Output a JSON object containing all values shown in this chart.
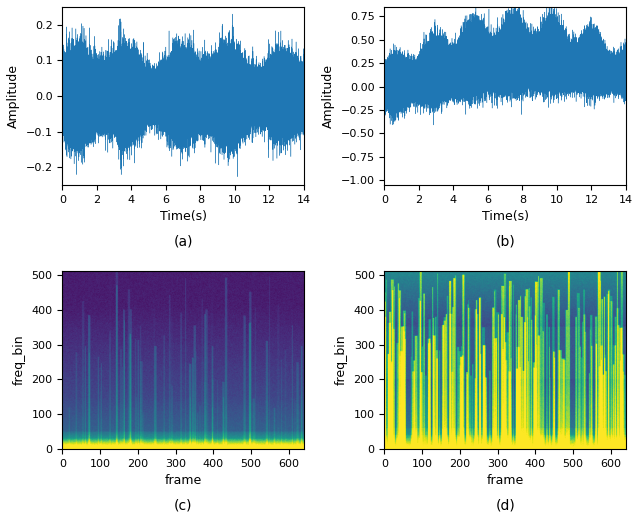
{
  "fig_width": 6.4,
  "fig_height": 5.21,
  "dpi": 100,
  "waveform_color": "#1f77b4",
  "subplot_labels": [
    "(a)",
    "(b)",
    "(c)",
    "(d)"
  ],
  "wave_a": {
    "xlabel": "Time(s)",
    "ylabel": "Amplitude",
    "xlim": [
      0,
      14
    ],
    "ylim": [
      -0.25,
      0.25
    ],
    "yticks": [
      -0.2,
      -0.1,
      0.0,
      0.1,
      0.2
    ],
    "xticks": [
      0,
      2,
      4,
      6,
      8,
      10,
      12,
      14
    ]
  },
  "wave_b": {
    "xlabel": "Time(s)",
    "ylabel": "Amplitude",
    "xlim": [
      0,
      14
    ],
    "ylim": [
      -1.05,
      0.85
    ],
    "yticks": [
      -1.0,
      -0.75,
      -0.5,
      -0.25,
      0.0,
      0.25,
      0.5,
      0.75
    ],
    "xticks": [
      0,
      2,
      4,
      6,
      8,
      10,
      12,
      14
    ]
  },
  "spec_c": {
    "xlabel": "frame",
    "ylabel": "freq_bin",
    "xlim": [
      0,
      640
    ],
    "ylim": [
      0,
      512
    ],
    "xticks": [
      0,
      100,
      200,
      300,
      400,
      500,
      600
    ],
    "yticks": [
      0,
      100,
      200,
      300,
      400,
      500
    ],
    "colormap": "viridis"
  },
  "spec_d": {
    "xlabel": "frame",
    "ylabel": "freq_bin",
    "xlim": [
      0,
      640
    ],
    "ylim": [
      0,
      512
    ],
    "xticks": [
      0,
      100,
      200,
      300,
      400,
      500,
      600
    ],
    "yticks": [
      0,
      100,
      200,
      300,
      400,
      500
    ],
    "colormap": "viridis"
  }
}
